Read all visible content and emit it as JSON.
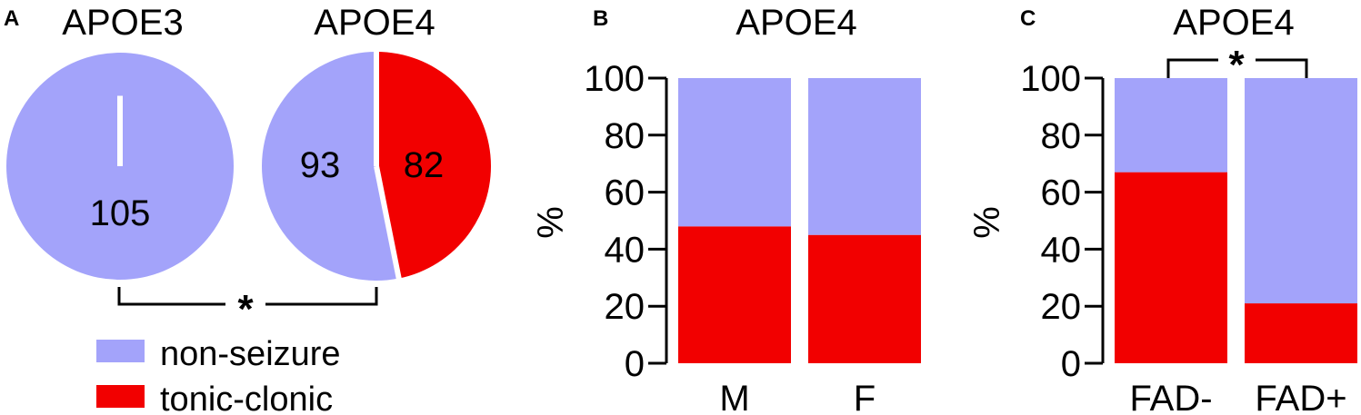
{
  "colors": {
    "non_seizure": "#a3a3fa",
    "tonic_clonic": "#f20000"
  },
  "panels": {
    "a": {
      "letter": "A",
      "significance": "*"
    },
    "b": {
      "letter": "B"
    },
    "c": {
      "letter": "C",
      "significance": "*"
    }
  },
  "legend": {
    "non_seizure": "non-seizure",
    "tonic_clonic": "tonic-clonic"
  },
  "chart_data": [
    {
      "type": "pie",
      "title": "APOE3",
      "slices": [
        {
          "name": "non-seizure",
          "value": 105,
          "label": "105"
        },
        {
          "name": "tonic-clonic",
          "value": 0,
          "label": ""
        }
      ]
    },
    {
      "type": "pie",
      "title": "APOE4",
      "slices": [
        {
          "name": "non-seizure",
          "value": 93,
          "label": "93"
        },
        {
          "name": "tonic-clonic",
          "value": 82,
          "label": "82"
        }
      ]
    },
    {
      "type": "bar",
      "stacked": true,
      "title": "APOE4",
      "ylabel": "%",
      "categories": [
        "M",
        "F"
      ],
      "ylim": [
        0,
        100
      ],
      "yticks": [
        "0",
        "20",
        "40",
        "60",
        "80",
        "100"
      ],
      "series": [
        {
          "name": "tonic-clonic",
          "values": [
            48,
            45
          ]
        },
        {
          "name": "non-seizure",
          "values": [
            52,
            55
          ]
        }
      ]
    },
    {
      "type": "bar",
      "stacked": true,
      "title": "APOE4",
      "ylabel": "%",
      "categories": [
        "FAD-",
        "FAD+"
      ],
      "ylim": [
        0,
        100
      ],
      "yticks": [
        "0",
        "20",
        "40",
        "60",
        "80",
        "100"
      ],
      "series": [
        {
          "name": "tonic-clonic",
          "values": [
            67,
            21
          ]
        },
        {
          "name": "non-seizure",
          "values": [
            33,
            79
          ]
        }
      ]
    }
  ]
}
